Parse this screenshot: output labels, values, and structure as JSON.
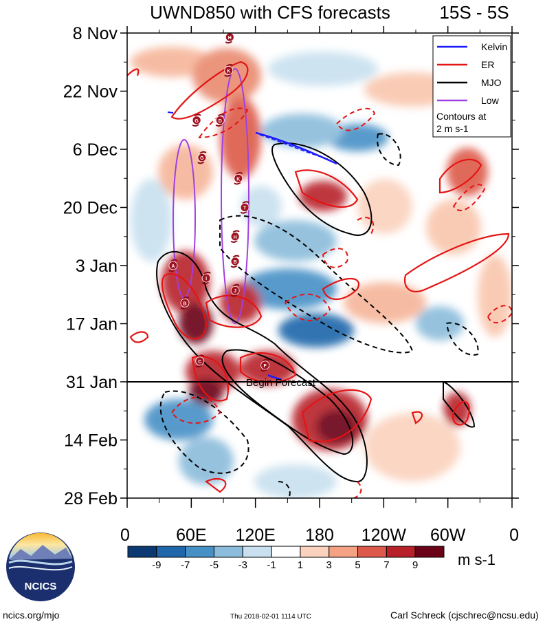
{
  "chart_data": {
    "type": "heatmap",
    "title": "UWND850 with CFS forecasts",
    "region": "15S - 5S",
    "y_labels": [
      "8 Nov",
      "22 Nov",
      "6 Dec",
      "20 Dec",
      "3 Jan",
      "17 Jan",
      "31 Jan",
      "14 Feb",
      "28 Feb"
    ],
    "x_labels": [
      "0",
      "60E",
      "120E",
      "180",
      "120W",
      "60W",
      "0"
    ],
    "x_range_deg": [
      0,
      360
    ],
    "y_range_days": [
      0,
      112
    ],
    "forecast_start_day": 84,
    "forecast_label": "Begin Forecast",
    "legend": {
      "position": "top-right",
      "items": [
        {
          "label": "Kelvin",
          "color": "#1a1aff"
        },
        {
          "label": "ER",
          "color": "#e41414"
        },
        {
          "label": "MJO",
          "color": "#000000"
        },
        {
          "label": "Low",
          "color": "#a040e0"
        }
      ],
      "note_line1": "Contours at",
      "note_line2": "2 m s-1"
    },
    "colorbar": {
      "labels": [
        "-9",
        "-7",
        "-5",
        "-3",
        "-1",
        "1",
        "3",
        "5",
        "7",
        "9"
      ],
      "colors": [
        "#0b3a73",
        "#1f66aa",
        "#4690c6",
        "#8bbcdb",
        "#c8e0ef",
        "#ffffff",
        "#fbd2bd",
        "#f4a283",
        "#dd5a4a",
        "#b8202a",
        "#6b0318"
      ],
      "units": "m s-1"
    },
    "storms": [
      {
        "id": "H",
        "lon": 96,
        "day": 1
      },
      {
        "id": "K",
        "lon": 95,
        "day": 9
      },
      {
        "id": "G",
        "lon": 65,
        "day": 21
      },
      {
        "id": "D",
        "lon": 87,
        "day": 21
      },
      {
        "id": "G",
        "lon": 70,
        "day": 30
      },
      {
        "id": "K",
        "lon": 104,
        "day": 35
      },
      {
        "id": "T",
        "lon": 110,
        "day": 42
      },
      {
        "id": "H",
        "lon": 101,
        "day": 49
      },
      {
        "id": "B",
        "lon": 101,
        "day": 55
      },
      {
        "id": "A",
        "lon": 43,
        "day": 56
      },
      {
        "id": "I",
        "lon": 74,
        "day": 59
      },
      {
        "id": "J",
        "lon": 101,
        "day": 62
      },
      {
        "id": "B",
        "lon": 54,
        "day": 65
      },
      {
        "id": "C",
        "lon": 68,
        "day": 79
      },
      {
        "id": "F",
        "lon": 129,
        "day": 80
      }
    ]
  },
  "footer": {
    "logo_text": "NCICS",
    "url": "ncics.org/mjo",
    "timestamp": "Thu 2018-02-01 1114 UTC",
    "author": "Carl Schreck (cjschrec@ncsu.edu)"
  },
  "colors": {
    "kelvin": "#1a1aff",
    "er": "#e41414",
    "mjo": "#000000",
    "low": "#a040e0"
  }
}
